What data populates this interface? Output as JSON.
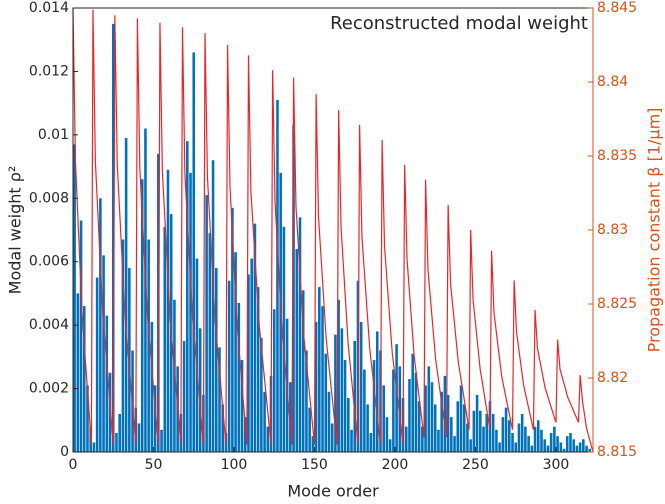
{
  "chart_data": {
    "type": "bar",
    "title": "Reconstructed modal weight",
    "x_label": "Mode order",
    "y_label": "Modal weight ρ²",
    "y2_label": "Propagation constant β [1/μm]",
    "xlim": [
      0,
      323
    ],
    "xticks": [
      0,
      50,
      100,
      150,
      200,
      250,
      300
    ],
    "ylim": [
      0,
      0.014
    ],
    "yticks": [
      0,
      0.002,
      0.004,
      0.006,
      0.008,
      0.01,
      0.012,
      0.014
    ],
    "y2lim": [
      8.815,
      8.845
    ],
    "y2ticks": [
      8.815,
      8.82,
      8.825,
      8.83,
      8.835,
      8.84,
      8.845
    ],
    "y2_color": "#d95319",
    "series": [
      {
        "type": "bar",
        "color": "#0072bd",
        "x": [
          1,
          3,
          5,
          7,
          9,
          11,
          13,
          15,
          17,
          19,
          21,
          23,
          25,
          27,
          29,
          31,
          33,
          35,
          37,
          39,
          41,
          43,
          45,
          47,
          49,
          51,
          53,
          55,
          57,
          59,
          61,
          63,
          65,
          67,
          69,
          71,
          73,
          75,
          77,
          79,
          81,
          83,
          85,
          87,
          89,
          91,
          93,
          95,
          97,
          99,
          101,
          103,
          105,
          107,
          109,
          111,
          113,
          115,
          117,
          119,
          121,
          123,
          125,
          127,
          129,
          131,
          133,
          135,
          137,
          139,
          141,
          143,
          145,
          147,
          149,
          151,
          153,
          155,
          157,
          159,
          161,
          163,
          165,
          167,
          169,
          171,
          173,
          175,
          177,
          179,
          181,
          183,
          185,
          187,
          189,
          191,
          193,
          195,
          197,
          199,
          201,
          203,
          205,
          207,
          209,
          211,
          213,
          215,
          217,
          219,
          221,
          223,
          225,
          227,
          229,
          231,
          233,
          235,
          237,
          239,
          241,
          243,
          245,
          247,
          249,
          251,
          253,
          255,
          257,
          259,
          261,
          263,
          265,
          267,
          269,
          271,
          273,
          275,
          277,
          279,
          281,
          283,
          285,
          287,
          289,
          291,
          293,
          295,
          297,
          299,
          301,
          303,
          305,
          307,
          309,
          311,
          313,
          315,
          317,
          319,
          321
        ],
        "values": [
          0.0097,
          0.005,
          0.0073,
          0.0046,
          0.0021,
          0.0008,
          0.0003,
          0.0055,
          0.008,
          0.0062,
          0.0043,
          0.0025,
          0.0135,
          0.0006,
          0.0012,
          0.0067,
          0.0099,
          0.0058,
          0.0032,
          0.0014,
          0.0009,
          0.0086,
          0.0102,
          0.0067,
          0.0041,
          0.0021,
          0.0094,
          0.0007,
          0.0071,
          0.0089,
          0.0075,
          0.0048,
          0.0027,
          0.0012,
          0.0035,
          0.0098,
          0.0088,
          0.0126,
          0.0061,
          0.0039,
          0.0018,
          0.0081,
          0.0069,
          0.0092,
          0.0058,
          0.0033,
          0.0015,
          0.0006,
          0.0054,
          0.0077,
          0.0063,
          0.0047,
          0.0029,
          0.0011,
          0.0056,
          0.0061,
          0.0072,
          0.0052,
          0.0036,
          0.0019,
          0.0008,
          0.0024,
          0.0045,
          0.0111,
          0.0088,
          0.0071,
          0.0042,
          0.0022,
          0.0103,
          0.0064,
          0.0074,
          0.0051,
          0.0032,
          0.0014,
          0.0005,
          0.0041,
          0.0052,
          0.0046,
          0.0031,
          0.0019,
          0.0009,
          0.0037,
          0.0048,
          0.0039,
          0.0029,
          0.0017,
          0.0007,
          0.0035,
          0.0054,
          0.0041,
          0.0026,
          0.0015,
          0.0006,
          0.0029,
          0.0038,
          0.0032,
          0.0021,
          0.0011,
          0.0004,
          0.0026,
          0.0034,
          0.0027,
          0.0017,
          0.0008,
          0.0023,
          0.0031,
          0.0025,
          0.0016,
          0.0008,
          0.0021,
          0.0027,
          0.0022,
          0.0015,
          0.0007,
          0.0019,
          0.0024,
          0.0018,
          0.0011,
          0.0005,
          0.0016,
          0.0021,
          0.0015,
          0.0009,
          0.0004,
          0.0013,
          0.0018,
          0.0013,
          0.0008,
          0.0012,
          0.0016,
          0.0012,
          0.0007,
          0.0003,
          0.0011,
          0.0014,
          0.001,
          0.0006,
          0.0003,
          0.0009,
          0.0012,
          0.0008,
          0.0005,
          0.0002,
          0.0008,
          0.001,
          0.0007,
          0.0004,
          0.0002,
          0.0006,
          0.0008,
          0.0005,
          0.0003,
          0.0001,
          0.0005,
          0.0006,
          0.0004,
          0.0002,
          0.0003,
          0.0004,
          0.0002,
          0.0001
        ]
      },
      {
        "type": "line",
        "axis": "y2",
        "color": "#e8262a",
        "x": [
          0,
          1.5,
          5.6,
          11.4,
          12.4,
          13.9,
          18.5,
          25,
          26,
          27.5,
          32.3,
          39,
          40,
          41.5,
          46.3,
          53,
          54,
          55.5,
          60.3,
          67,
          68,
          69.5,
          74.3,
          81,
          82,
          83.5,
          88.3,
          95,
          96,
          97.5,
          101.9,
          108,
          109,
          110.5,
          115.8,
          123,
          124,
          125.5,
          129.9,
          136,
          137,
          138.5,
          143.3,
          150,
          151,
          152.5,
          157.3,
          164,
          165,
          166.5,
          170.9,
          177,
          178,
          179.5,
          184.3,
          191,
          192,
          193.5,
          198.3,
          205,
          206,
          207.5,
          211.9,
          218,
          219,
          220.5,
          225.3,
          232,
          233,
          234.5,
          239.3,
          246,
          247,
          248.5,
          252.9,
          259,
          260,
          261.5,
          266.3,
          273,
          274,
          275.5,
          279.9,
          286,
          287,
          288.5,
          293.3,
          300,
          301,
          302.5,
          307.3,
          314,
          315,
          316.5,
          319,
          323
        ],
        "values": [
          8.845,
          8.8347,
          8.8244,
          8.8155,
          8.8449,
          8.8346,
          8.8243,
          8.8155,
          8.8445,
          8.8344,
          8.8242,
          8.8155,
          8.8443,
          8.8342,
          8.8241,
          8.8155,
          8.844,
          8.834,
          8.824,
          8.8155,
          8.8437,
          8.8338,
          8.824,
          8.8155,
          8.8433,
          8.8336,
          8.8238,
          8.8155,
          8.8425,
          8.833,
          8.8236,
          8.8155,
          8.8418,
          8.8326,
          8.8234,
          8.8155,
          8.8408,
          8.8319,
          8.8231,
          8.8155,
          8.8403,
          8.8316,
          8.8229,
          8.8155,
          8.8392,
          8.8309,
          8.8226,
          8.8155,
          8.8381,
          8.8302,
          8.8223,
          8.8155,
          8.8371,
          8.8295,
          8.822,
          8.8155,
          8.8361,
          8.8289,
          8.8217,
          8.8155,
          8.8344,
          8.828,
          8.8215,
          8.816,
          8.8334,
          8.8273,
          8.8212,
          8.816,
          8.8317,
          8.8264,
          8.8211,
          8.8165,
          8.83,
          8.8253,
          8.8206,
          8.8165,
          8.8286,
          8.8244,
          8.8201,
          8.8165,
          8.8266,
          8.8231,
          8.8195,
          8.8165,
          8.8246,
          8.822,
          8.8193,
          8.817,
          8.8226,
          8.8206,
          8.8187,
          8.817,
          8.8202,
          8.8184,
          8.8166,
          8.815
        ]
      }
    ]
  }
}
